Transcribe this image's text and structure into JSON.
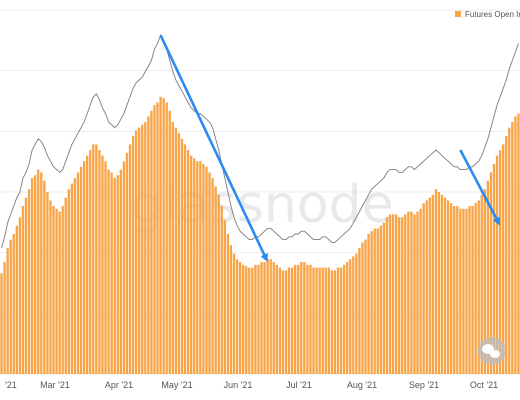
{
  "chart_data": {
    "type": "bar",
    "watermark": "glassnode",
    "series": [
      {
        "name": "Futures Open In",
        "kind": "bar",
        "color": "#f7a548",
        "values": [
          0.36,
          0.4,
          0.45,
          0.48,
          0.5,
          0.53,
          0.56,
          0.6,
          0.63,
          0.66,
          0.7,
          0.71,
          0.73,
          0.72,
          0.69,
          0.65,
          0.62,
          0.6,
          0.59,
          0.58,
          0.6,
          0.63,
          0.66,
          0.68,
          0.7,
          0.72,
          0.74,
          0.76,
          0.78,
          0.8,
          0.82,
          0.82,
          0.8,
          0.78,
          0.76,
          0.73,
          0.72,
          0.7,
          0.71,
          0.73,
          0.76,
          0.79,
          0.82,
          0.85,
          0.87,
          0.88,
          0.89,
          0.9,
          0.92,
          0.94,
          0.96,
          0.97,
          0.99,
          0.985,
          0.97,
          0.94,
          0.9,
          0.88,
          0.86,
          0.84,
          0.82,
          0.8,
          0.78,
          0.77,
          0.76,
          0.76,
          0.75,
          0.74,
          0.72,
          0.7,
          0.67,
          0.64,
          0.6,
          0.55,
          0.5,
          0.46,
          0.43,
          0.41,
          0.4,
          0.39,
          0.385,
          0.38,
          0.38,
          0.39,
          0.39,
          0.4,
          0.4,
          0.41,
          0.41,
          0.4,
          0.39,
          0.38,
          0.37,
          0.37,
          0.38,
          0.38,
          0.39,
          0.39,
          0.4,
          0.4,
          0.39,
          0.39,
          0.38,
          0.38,
          0.38,
          0.38,
          0.38,
          0.38,
          0.37,
          0.37,
          0.38,
          0.38,
          0.39,
          0.4,
          0.41,
          0.42,
          0.43,
          0.45,
          0.47,
          0.48,
          0.5,
          0.51,
          0.52,
          0.52,
          0.53,
          0.54,
          0.56,
          0.57,
          0.57,
          0.57,
          0.56,
          0.56,
          0.57,
          0.58,
          0.58,
          0.57,
          0.58,
          0.59,
          0.61,
          0.62,
          0.63,
          0.64,
          0.66,
          0.65,
          0.64,
          0.63,
          0.62,
          0.61,
          0.6,
          0.6,
          0.59,
          0.59,
          0.59,
          0.6,
          0.6,
          0.61,
          0.62,
          0.64,
          0.66,
          0.69,
          0.72,
          0.75,
          0.78,
          0.8,
          0.82,
          0.85,
          0.88,
          0.9,
          0.92,
          0.93
        ]
      },
      {
        "name": "",
        "kind": "line",
        "color": "#7c7c7c",
        "values": [
          0.45,
          0.49,
          0.54,
          0.57,
          0.6,
          0.63,
          0.65,
          0.7,
          0.72,
          0.75,
          0.8,
          0.82,
          0.84,
          0.83,
          0.81,
          0.78,
          0.76,
          0.74,
          0.73,
          0.72,
          0.73,
          0.76,
          0.79,
          0.82,
          0.84,
          0.86,
          0.88,
          0.9,
          0.93,
          0.96,
          0.99,
          1.0,
          0.98,
          0.95,
          0.93,
          0.9,
          0.89,
          0.88,
          0.89,
          0.91,
          0.93,
          0.96,
          0.99,
          1.02,
          1.04,
          1.05,
          1.06,
          1.08,
          1.1,
          1.12,
          1.16,
          1.18,
          1.21,
          1.19,
          1.16,
          1.12,
          1.08,
          1.05,
          1.03,
          1.01,
          0.99,
          0.97,
          0.95,
          0.94,
          0.93,
          0.93,
          0.92,
          0.91,
          0.9,
          0.88,
          0.84,
          0.8,
          0.75,
          0.7,
          0.65,
          0.6,
          0.56,
          0.53,
          0.51,
          0.5,
          0.49,
          0.48,
          0.48,
          0.49,
          0.49,
          0.5,
          0.51,
          0.52,
          0.52,
          0.51,
          0.5,
          0.49,
          0.48,
          0.48,
          0.49,
          0.49,
          0.5,
          0.5,
          0.51,
          0.51,
          0.5,
          0.49,
          0.48,
          0.48,
          0.48,
          0.49,
          0.49,
          0.48,
          0.47,
          0.47,
          0.48,
          0.49,
          0.5,
          0.51,
          0.52,
          0.54,
          0.56,
          0.58,
          0.6,
          0.62,
          0.64,
          0.66,
          0.67,
          0.68,
          0.69,
          0.7,
          0.72,
          0.73,
          0.73,
          0.73,
          0.72,
          0.72,
          0.73,
          0.74,
          0.74,
          0.73,
          0.74,
          0.75,
          0.76,
          0.77,
          0.78,
          0.79,
          0.8,
          0.79,
          0.78,
          0.77,
          0.76,
          0.75,
          0.74,
          0.74,
          0.73,
          0.73,
          0.73,
          0.74,
          0.74,
          0.75,
          0.76,
          0.78,
          0.81,
          0.84,
          0.88,
          0.92,
          0.96,
          0.99,
          1.02,
          1.05,
          1.09,
          1.12,
          1.15,
          1.18
        ]
      }
    ],
    "ylim": [
      0,
      1.3
    ],
    "x_ticks": [
      "'21",
      "Mar '21",
      "Apr '21",
      "May '21",
      "Jun '21",
      "Jul '21",
      "Aug '21",
      "Sep '21",
      "Oct '21"
    ],
    "annotations": [
      {
        "type": "arrow",
        "color": "#2a8cf0",
        "from_index": 52,
        "from_value": 1.21,
        "to_index": 87,
        "to_value": 0.4
      },
      {
        "type": "arrow",
        "color": "#2a8cf0",
        "from_index": 150,
        "from_value": 0.8,
        "to_index": 163,
        "to_value": 0.53
      }
    ],
    "grid": true,
    "legend": "top-right"
  }
}
